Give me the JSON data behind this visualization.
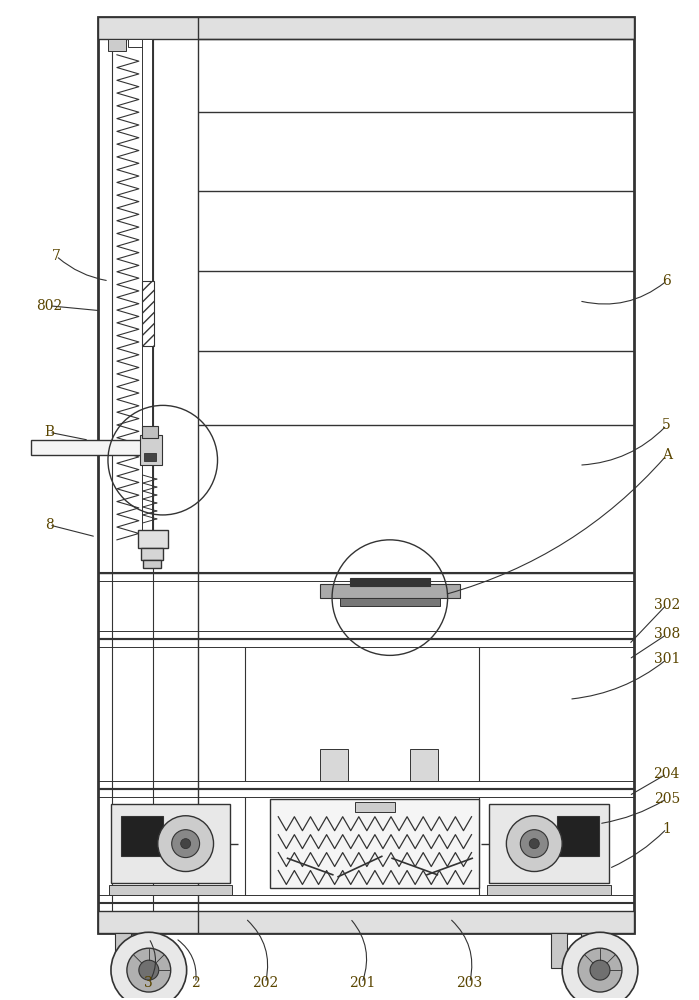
{
  "bg_color": "#ffffff",
  "line_color": "#333333",
  "line_width": 1.0,
  "thick_line": 2.0,
  "fig_width": 6.99,
  "fig_height": 10.0
}
